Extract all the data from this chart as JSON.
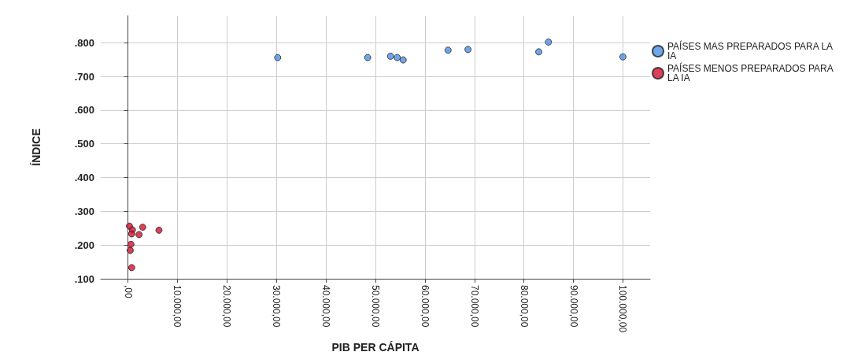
{
  "chart_data": {
    "type": "scatter",
    "xlabel": "PIB PER CÁPITA",
    "ylabel": "ÍNDICE",
    "xlim": [
      -5500,
      105500
    ],
    "ylim": [
      0.1,
      0.88
    ],
    "xticks": [
      {
        "value": 0,
        "label": ",00"
      },
      {
        "value": 10000,
        "label": "10.000,00"
      },
      {
        "value": 20000,
        "label": "20.000,00"
      },
      {
        "value": 30000,
        "label": "30.000,00"
      },
      {
        "value": 40000,
        "label": "40.000,00"
      },
      {
        "value": 50000,
        "label": "50.000,00"
      },
      {
        "value": 60000,
        "label": "60.000,00"
      },
      {
        "value": 70000,
        "label": "70.000,00"
      },
      {
        "value": 80000,
        "label": "80.000,00"
      },
      {
        "value": 90000,
        "label": "90.000,00"
      },
      {
        "value": 100000,
        "label": "100.000,00"
      }
    ],
    "yticks": [
      {
        "value": 0.1,
        "label": ".100"
      },
      {
        "value": 0.2,
        "label": ".200"
      },
      {
        "value": 0.3,
        "label": ".300"
      },
      {
        "value": 0.4,
        "label": ".400"
      },
      {
        "value": 0.5,
        "label": ".500"
      },
      {
        "value": 0.6,
        "label": ".600"
      },
      {
        "value": 0.7,
        "label": ".700"
      },
      {
        "value": 0.8,
        "label": ".800"
      }
    ],
    "grid": true,
    "legend": "top right",
    "marker": "circle",
    "series": [
      {
        "name": "PAÍSES MAS PREPARADOS PARA LA IA",
        "color": "#4a90e2",
        "x": [
          30250,
          48430,
          53050,
          54400,
          55600,
          64680,
          68700,
          83000,
          84950,
          100000
        ],
        "values": [
          0.756,
          0.756,
          0.76,
          0.756,
          0.749,
          0.778,
          0.78,
          0.773,
          0.802,
          0.758
        ]
      },
      {
        "name": "PAÍSES MENOS PREPARADOS PARA LA IA",
        "color": "#d2112e",
        "x": [
          300,
          900,
          2980,
          6260,
          750,
          2240,
          600,
          450,
          750
        ],
        "values": [
          0.256,
          0.245,
          0.253,
          0.244,
          0.233,
          0.231,
          0.202,
          0.184,
          0.133
        ]
      }
    ]
  }
}
